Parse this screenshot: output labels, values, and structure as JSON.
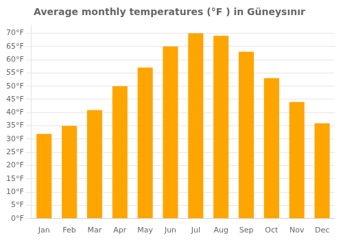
{
  "chart_data": {
    "type": "bar",
    "title": "Average monthly temperatures (°F ) in Güneysınır",
    "categories": [
      "Jan",
      "Feb",
      "Mar",
      "Apr",
      "May",
      "Jun",
      "Jul",
      "Aug",
      "Sep",
      "Oct",
      "Nov",
      "Dec"
    ],
    "values": [
      32,
      35,
      41,
      50,
      57,
      65,
      70,
      69,
      63,
      53,
      44,
      36
    ],
    "color": "#FFA500",
    "ylim": [
      0,
      73
    ],
    "yticks": [
      {
        "value": 0,
        "label": "0°F"
      },
      {
        "value": 5,
        "label": "5°F"
      },
      {
        "value": 10,
        "label": "10°F"
      },
      {
        "value": 15,
        "label": "15°F"
      },
      {
        "value": 20,
        "label": "20°F"
      },
      {
        "value": 25,
        "label": "25°F"
      },
      {
        "value": 30,
        "label": "30°F"
      },
      {
        "value": 35,
        "label": "35°F"
      },
      {
        "value": 40,
        "label": "40°F"
      },
      {
        "value": 45,
        "label": "45°F"
      },
      {
        "value": 50,
        "label": "50°F"
      },
      {
        "value": 55,
        "label": "55°F"
      },
      {
        "value": 60,
        "label": "60°F"
      },
      {
        "value": 65,
        "label": "65°F"
      },
      {
        "value": 70,
        "label": "70°F"
      }
    ],
    "grid": true
  }
}
